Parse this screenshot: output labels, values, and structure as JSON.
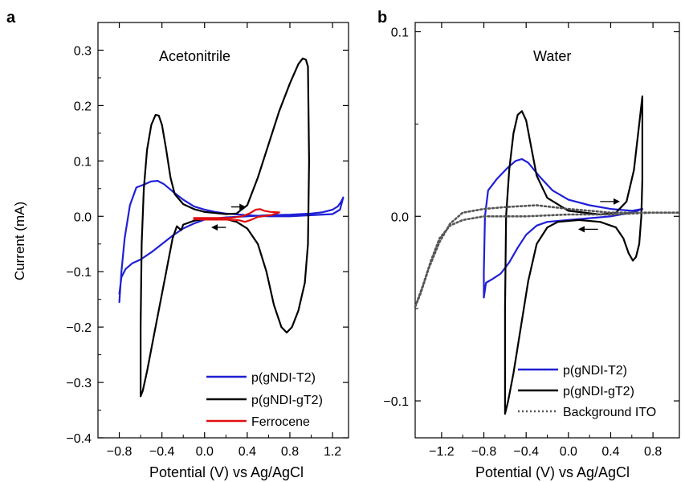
{
  "chart_data": [
    {
      "panel_label": "a",
      "type": "line",
      "annotation": "Acetonitrile",
      "xlabel": "Potential (V) vs Ag/AgCl",
      "ylabel": "Current (mA)",
      "xlim": [
        -1.0,
        1.35
      ],
      "ylim": [
        -0.4,
        0.35
      ],
      "xticks": [
        -0.8,
        -0.4,
        0.0,
        0.4,
        0.8,
        1.2
      ],
      "xtick_labels": [
        "−0.8",
        "−0.4",
        "0.0",
        "0.4",
        "0.8",
        "1.2"
      ],
      "yticks": [
        -0.4,
        -0.3,
        -0.2,
        -0.1,
        0.0,
        0.1,
        0.2,
        0.3
      ],
      "ytick_labels": [
        "−0.4",
        "−0.3",
        "−0.2",
        "−0.1",
        "0.0",
        "0.1",
        "0.2",
        "0.3"
      ],
      "legend_position": "bottom-right",
      "series": [
        {
          "name": "p(gNDI-T2)",
          "color": "#1f1fd6",
          "style": "solid",
          "points": [
            [
              -0.8,
              -0.14
            ],
            [
              -0.78,
              -0.11
            ],
            [
              -0.74,
              -0.095
            ],
            [
              -0.68,
              -0.085
            ],
            [
              -0.6,
              -0.078
            ],
            [
              -0.5,
              -0.065
            ],
            [
              -0.4,
              -0.05
            ],
            [
              -0.3,
              -0.035
            ],
            [
              -0.2,
              -0.022
            ],
            [
              -0.1,
              -0.013
            ],
            [
              0.0,
              -0.006
            ],
            [
              0.2,
              -0.002
            ],
            [
              0.4,
              0.0
            ],
            [
              0.6,
              0.002
            ],
            [
              0.8,
              0.003
            ],
            [
              1.0,
              0.005
            ],
            [
              1.1,
              0.007
            ],
            [
              1.2,
              0.012
            ],
            [
              1.25,
              0.018
            ],
            [
              1.28,
              0.026
            ],
            [
              1.3,
              0.034
            ],
            [
              1.27,
              0.012
            ],
            [
              1.2,
              0.004
            ],
            [
              1.0,
              0.002
            ],
            [
              0.8,
              0.0
            ],
            [
              0.6,
              0.0
            ],
            [
              0.4,
              0.002
            ],
            [
              0.2,
              0.005
            ],
            [
              0.1,
              0.008
            ],
            [
              0.0,
              0.012
            ],
            [
              -0.1,
              0.018
            ],
            [
              -0.2,
              0.03
            ],
            [
              -0.3,
              0.045
            ],
            [
              -0.38,
              0.058
            ],
            [
              -0.44,
              0.064
            ],
            [
              -0.5,
              0.063
            ],
            [
              -0.56,
              0.058
            ],
            [
              -0.6,
              0.055
            ],
            [
              -0.64,
              0.052
            ],
            [
              -0.7,
              0.02
            ],
            [
              -0.75,
              -0.04
            ],
            [
              -0.78,
              -0.1
            ],
            [
              -0.8,
              -0.155
            ]
          ]
        },
        {
          "name": "p(gNDI-gT2)",
          "color": "#000000",
          "style": "solid",
          "points": [
            [
              -0.6,
              -0.325
            ],
            [
              -0.6,
              -0.2
            ],
            [
              -0.59,
              -0.05
            ],
            [
              -0.57,
              0.05
            ],
            [
              -0.54,
              0.12
            ],
            [
              -0.5,
              0.165
            ],
            [
              -0.46,
              0.183
            ],
            [
              -0.43,
              0.182
            ],
            [
              -0.4,
              0.165
            ],
            [
              -0.36,
              0.12
            ],
            [
              -0.32,
              0.07
            ],
            [
              -0.28,
              0.04
            ],
            [
              -0.2,
              0.022
            ],
            [
              -0.1,
              0.013
            ],
            [
              0.0,
              0.008
            ],
            [
              0.2,
              0.004
            ],
            [
              0.3,
              0.005
            ],
            [
              0.4,
              0.02
            ],
            [
              0.5,
              0.07
            ],
            [
              0.6,
              0.13
            ],
            [
              0.7,
              0.19
            ],
            [
              0.8,
              0.24
            ],
            [
              0.88,
              0.275
            ],
            [
              0.92,
              0.285
            ],
            [
              0.95,
              0.283
            ],
            [
              0.97,
              0.27
            ],
            [
              0.98,
              0.1
            ],
            [
              0.97,
              -0.05
            ],
            [
              0.94,
              -0.12
            ],
            [
              0.88,
              -0.17
            ],
            [
              0.82,
              -0.2
            ],
            [
              0.77,
              -0.21
            ],
            [
              0.72,
              -0.2
            ],
            [
              0.65,
              -0.16
            ],
            [
              0.58,
              -0.1
            ],
            [
              0.5,
              -0.05
            ],
            [
              0.4,
              -0.022
            ],
            [
              0.3,
              -0.01
            ],
            [
              0.2,
              -0.005
            ],
            [
              0.0,
              -0.005
            ],
            [
              -0.1,
              -0.008
            ],
            [
              -0.2,
              -0.015
            ],
            [
              -0.22,
              -0.025
            ],
            [
              -0.26,
              -0.018
            ],
            [
              -0.3,
              -0.04
            ],
            [
              -0.36,
              -0.1
            ],
            [
              -0.42,
              -0.16
            ],
            [
              -0.48,
              -0.22
            ],
            [
              -0.54,
              -0.28
            ],
            [
              -0.58,
              -0.315
            ],
            [
              -0.6,
              -0.325
            ]
          ]
        },
        {
          "name": "Ferrocene",
          "color": "#e01010",
          "style": "solid",
          "points": [
            [
              -0.1,
              -0.003
            ],
            [
              0.1,
              -0.003
            ],
            [
              0.25,
              -0.003
            ],
            [
              0.35,
              0.0
            ],
            [
              0.42,
              0.005
            ],
            [
              0.48,
              0.012
            ],
            [
              0.52,
              0.013
            ],
            [
              0.56,
              0.01
            ],
            [
              0.62,
              0.008
            ],
            [
              0.7,
              0.007
            ],
            [
              0.62,
              0.002
            ],
            [
              0.5,
              -0.001
            ],
            [
              0.44,
              -0.006
            ],
            [
              0.38,
              -0.01
            ],
            [
              0.32,
              -0.007
            ],
            [
              0.2,
              -0.006
            ],
            [
              0.0,
              -0.006
            ],
            [
              -0.1,
              -0.005
            ]
          ]
        }
      ],
      "arrows": [
        {
          "from": [
            0.25,
            0.017
          ],
          "to": [
            0.38,
            0.017
          ]
        },
        {
          "from": [
            0.2,
            -0.02
          ],
          "to": [
            0.07,
            -0.02
          ]
        }
      ]
    },
    {
      "panel_label": "b",
      "type": "line",
      "annotation": "Water",
      "xlabel": "Potential (V) vs Ag/AgCl",
      "ylabel": "",
      "xlim": [
        -1.45,
        1.05
      ],
      "ylim": [
        -0.12,
        0.105
      ],
      "xticks": [
        -1.2,
        -0.8,
        -0.4,
        0.0,
        0.4,
        0.8
      ],
      "xtick_labels": [
        "−1.2",
        "−0.8",
        "−0.4",
        "0.0",
        "0.4",
        "0.8"
      ],
      "yticks": [
        -0.1,
        0.0,
        0.1
      ],
      "ytick_labels": [
        "−0.1",
        "0.0",
        "0.1"
      ],
      "legend_position": "bottom-right",
      "series": [
        {
          "name": "p(gNDI-T2)",
          "color": "#1f1fd6",
          "style": "solid",
          "points": [
            [
              -0.8,
              -0.044
            ],
            [
              -0.78,
              -0.036
            ],
            [
              -0.72,
              -0.034
            ],
            [
              -0.64,
              -0.031
            ],
            [
              -0.56,
              -0.025
            ],
            [
              -0.48,
              -0.017
            ],
            [
              -0.4,
              -0.01
            ],
            [
              -0.3,
              -0.005
            ],
            [
              -0.2,
              -0.003
            ],
            [
              0.0,
              -0.002
            ],
            [
              0.2,
              -0.001
            ],
            [
              0.4,
              0.0
            ],
            [
              0.6,
              0.002
            ],
            [
              0.7,
              0.004
            ],
            [
              0.6,
              0.003
            ],
            [
              0.4,
              0.004
            ],
            [
              0.2,
              0.006
            ],
            [
              0.0,
              0.009
            ],
            [
              -0.15,
              0.014
            ],
            [
              -0.28,
              0.022
            ],
            [
              -0.38,
              0.029
            ],
            [
              -0.44,
              0.031
            ],
            [
              -0.5,
              0.03
            ],
            [
              -0.58,
              0.026
            ],
            [
              -0.68,
              0.02
            ],
            [
              -0.76,
              0.014
            ],
            [
              -0.79,
              0.0
            ],
            [
              -0.8,
              -0.03
            ],
            [
              -0.8,
              -0.044
            ]
          ]
        },
        {
          "name": "p(gNDI-gT2)",
          "color": "#000000",
          "style": "solid",
          "points": [
            [
              -0.6,
              -0.107
            ],
            [
              -0.6,
              -0.05
            ],
            [
              -0.59,
              0.0
            ],
            [
              -0.56,
              0.025
            ],
            [
              -0.52,
              0.045
            ],
            [
              -0.48,
              0.055
            ],
            [
              -0.44,
              0.057
            ],
            [
              -0.4,
              0.052
            ],
            [
              -0.36,
              0.04
            ],
            [
              -0.3,
              0.022
            ],
            [
              -0.2,
              0.01
            ],
            [
              0.0,
              0.003
            ],
            [
              0.3,
              0.001
            ],
            [
              0.45,
              0.002
            ],
            [
              0.55,
              0.008
            ],
            [
              0.62,
              0.025
            ],
            [
              0.68,
              0.055
            ],
            [
              0.7,
              0.065
            ],
            [
              0.7,
              0.02
            ],
            [
              0.69,
              0.0
            ],
            [
              0.67,
              -0.015
            ],
            [
              0.64,
              -0.022
            ],
            [
              0.61,
              -0.024
            ],
            [
              0.57,
              -0.02
            ],
            [
              0.52,
              -0.012
            ],
            [
              0.45,
              -0.006
            ],
            [
              0.3,
              -0.003
            ],
            [
              0.1,
              -0.002
            ],
            [
              -0.1,
              -0.003
            ],
            [
              -0.2,
              -0.006
            ],
            [
              -0.3,
              -0.015
            ],
            [
              -0.38,
              -0.035
            ],
            [
              -0.45,
              -0.06
            ],
            [
              -0.52,
              -0.085
            ],
            [
              -0.57,
              -0.1
            ],
            [
              -0.6,
              -0.107
            ]
          ]
        },
        {
          "name": "Background ITO",
          "color": "#555555",
          "style": "dotted",
          "points": [
            [
              -1.45,
              -0.049
            ],
            [
              -1.38,
              -0.038
            ],
            [
              -1.3,
              -0.024
            ],
            [
              -1.22,
              -0.012
            ],
            [
              -1.12,
              -0.005
            ],
            [
              -1.0,
              -0.002
            ],
            [
              -0.8,
              0.0
            ],
            [
              -0.6,
              0.0
            ],
            [
              -0.4,
              0.0
            ],
            [
              0.0,
              0.001
            ],
            [
              0.4,
              0.001
            ],
            [
              0.8,
              0.002
            ],
            [
              1.05,
              0.002
            ],
            [
              0.8,
              0.002
            ],
            [
              0.4,
              0.002
            ],
            [
              0.0,
              0.004
            ],
            [
              -0.3,
              0.006
            ],
            [
              -0.6,
              0.005
            ],
            [
              -0.8,
              0.004
            ],
            [
              -1.0,
              0.002
            ],
            [
              -1.12,
              -0.004
            ],
            [
              -1.22,
              -0.014
            ],
            [
              -1.32,
              -0.028
            ],
            [
              -1.4,
              -0.042
            ],
            [
              -1.45,
              -0.049
            ]
          ]
        }
      ],
      "arrows": [
        {
          "from": [
            0.3,
            0.008
          ],
          "to": [
            0.48,
            0.008
          ]
        },
        {
          "from": [
            0.28,
            -0.007
          ],
          "to": [
            0.1,
            -0.007
          ]
        }
      ]
    }
  ]
}
